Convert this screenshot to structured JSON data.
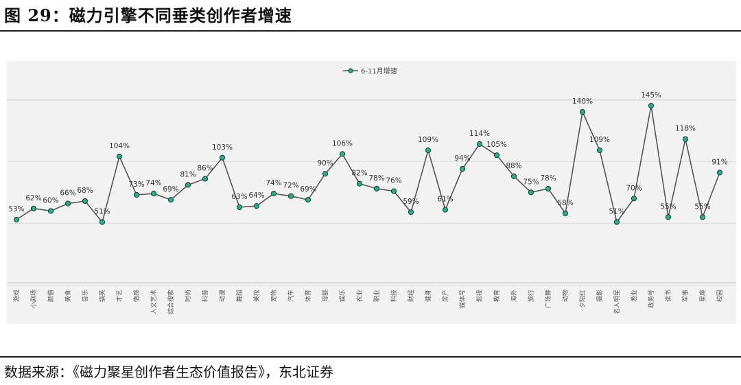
{
  "figure": {
    "title": "图  29：磁力引擎不同垂类创作者增速",
    "source": "数据来源：《磁力聚星创作者生态价值报告》，东北证券"
  },
  "colors": {
    "line": "#555555",
    "marker": "#1cb38a",
    "gridline": "#d9d9d9",
    "panel": "#f2f2f2"
  },
  "chart_data": {
    "type": "line",
    "legend_position": "top-center",
    "grid": true,
    "ylim": [
      0,
      200
    ],
    "categories": [
      "游戏",
      "小剧场",
      "颜值",
      "美食",
      "音乐",
      "搞笑",
      "才艺",
      "情感",
      "人文艺术",
      "综合搜索",
      "时尚",
      "科普",
      "动漫",
      "舞蹈",
      "美妆",
      "宠物",
      "汽车",
      "体育",
      "母婴",
      "娱乐",
      "农业",
      "职业",
      "科技",
      "财经",
      "健身",
      "房产",
      "媒体号",
      "影视",
      "教育",
      "海外",
      "旅行",
      "广场舞",
      "动物",
      "夕阳红",
      "摄影",
      "名人明星",
      "渔业",
      "政务号",
      "读书",
      "军事",
      "星座",
      "校园"
    ],
    "series": [
      {
        "name": "6-11月增速",
        "values": [
          53,
          62,
          60,
          66,
          68,
          51,
          104,
          73,
          74,
          69,
          81,
          86,
          103,
          63,
          64,
          74,
          72,
          69,
          90,
          106,
          82,
          78,
          76,
          59,
          109,
          61,
          94,
          114,
          105,
          88,
          75,
          78,
          58,
          140,
          109,
          51,
          70,
          145,
          55,
          118,
          55,
          91
        ],
        "labels": [
          "53%",
          "62%",
          "60%",
          "66%",
          "68%",
          "51%",
          "104%",
          "73%",
          "74%",
          "69%",
          "81%",
          "86%",
          "103%",
          "63%",
          "64%",
          "74%",
          "72%",
          "69%",
          "90%",
          "106%",
          "82%",
          "78%",
          "76%",
          "59%",
          "109%",
          "61%",
          "94%",
          "114%",
          "105%",
          "88%",
          "75%",
          "78%",
          "58%",
          "140%",
          "109%",
          "51%",
          "70%",
          "145%",
          "55%",
          "118%",
          "55%",
          "91%"
        ]
      }
    ]
  }
}
